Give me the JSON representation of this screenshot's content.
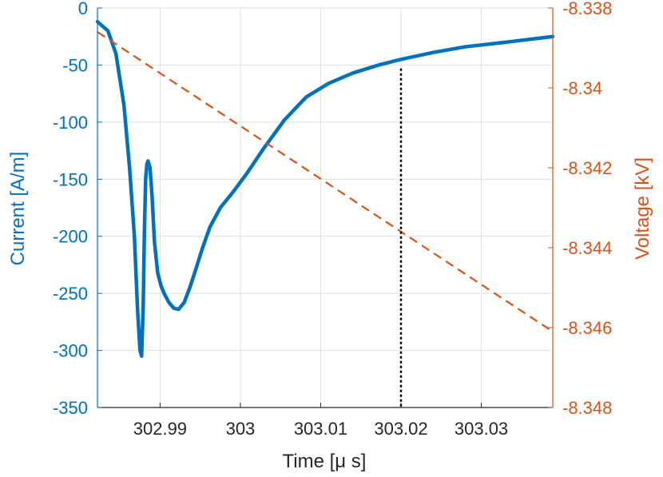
{
  "chart_data": {
    "type": "line",
    "xlabel": "Time [μ s]",
    "ylabel_left": "Current [A/m]",
    "ylabel_right": "Voltage [kV]",
    "xlim": [
      302.9822,
      303.0389
    ],
    "ylim_left": [
      -350,
      0
    ],
    "ylim_right": [
      -8.348,
      -8.338
    ],
    "x_ticks": [
      302.99,
      303.0,
      303.01,
      303.02,
      303.03
    ],
    "x_tick_labels": [
      "302.99",
      "303",
      "303.01",
      "303.02",
      "303.03"
    ],
    "y_left_ticks": [
      0,
      -50,
      -100,
      -150,
      -200,
      -250,
      -300,
      -350
    ],
    "y_left_tick_labels": [
      "0",
      "-50",
      "-100",
      "-150",
      "-200",
      "-250",
      "-300",
      "-350"
    ],
    "y_right_ticks": [
      -8.338,
      -8.34,
      -8.342,
      -8.344,
      -8.346,
      -8.348
    ],
    "y_right_tick_labels": [
      "-8.338",
      "-8.34",
      "-8.342",
      "-8.344",
      "-8.346",
      "-8.348"
    ],
    "grid": true,
    "colors": {
      "current": "#0072BD",
      "voltage": "#D95319",
      "marker": "#000000",
      "axis": "#262626",
      "grid": "#dfdfdf"
    },
    "series": [
      {
        "axis": "left",
        "style": "solid",
        "x": [
          302.9822,
          302.9835,
          302.9845,
          302.9855,
          302.9862,
          302.9868,
          302.9872,
          302.9875,
          302.9877,
          302.9879,
          302.98805,
          302.9882,
          302.98835,
          302.9885,
          302.98875,
          302.989,
          302.9893,
          302.9897,
          302.9901,
          302.9905,
          302.9911,
          302.9917,
          302.9923,
          302.993,
          302.9937,
          302.9944,
          302.9952,
          302.9962,
          302.9975,
          302.999,
          303.0008,
          303.003,
          303.0055,
          303.0082,
          303.011,
          303.014,
          303.0172,
          303.02,
          303.024,
          303.028,
          303.033,
          303.0389
        ],
        "y": [
          -12,
          -20,
          -40,
          -85,
          -140,
          -200,
          -265,
          -300,
          -305,
          -260,
          -195,
          -150,
          -137,
          -134,
          -140,
          -165,
          -205,
          -232,
          -243,
          -250,
          -258,
          -263,
          -264,
          -258,
          -245,
          -230,
          -212,
          -192,
          -175,
          -162,
          -145,
          -122,
          -98,
          -78,
          -66,
          -57,
          -50,
          -45,
          -39,
          -34,
          -30,
          -25
        ]
      },
      {
        "axis": "right",
        "style": "dashed",
        "x": [
          302.9822,
          303.0389
        ],
        "y": [
          -8.3386,
          -8.3461
        ]
      }
    ],
    "vertical_marker": {
      "x": 303.02,
      "style": "dotted",
      "y_from": -53,
      "y_to": -350
    }
  }
}
